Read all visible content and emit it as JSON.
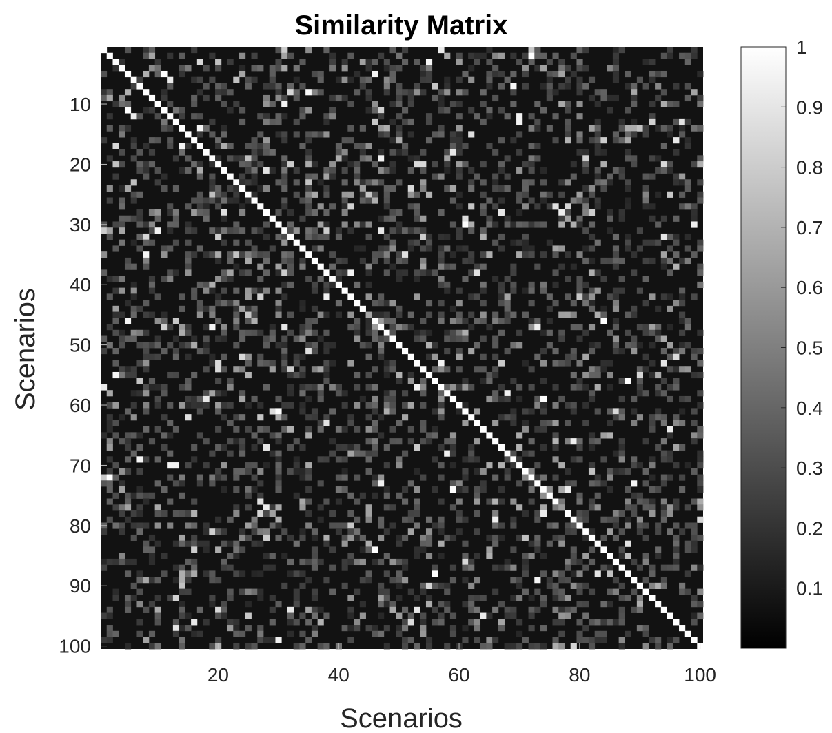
{
  "chart_data": {
    "type": "heatmap",
    "title": "Similarity Matrix",
    "xlabel": "Scenarios",
    "ylabel": "Scenarios",
    "rows": 100,
    "cols": 100,
    "xlim": [
      1,
      100
    ],
    "ylim": [
      1,
      100
    ],
    "y_reversed": true,
    "xticks": [
      20,
      40,
      60,
      80,
      100
    ],
    "yticks": [
      10,
      20,
      30,
      40,
      50,
      60,
      70,
      80,
      90,
      100
    ],
    "colormap": "gray",
    "colorbar": {
      "min": 0.0,
      "max": 1.0,
      "ticks": [
        0.1,
        0.2,
        0.3,
        0.4,
        0.5,
        0.6,
        0.7,
        0.8,
        0.9,
        1
      ],
      "tick_labels": [
        "0.1",
        "0.2",
        "0.3",
        "0.4",
        "0.5",
        "0.6",
        "0.7",
        "0.8",
        "0.9",
        "1"
      ]
    },
    "diagonal_value": 1.0,
    "background_value": 0.07,
    "notable_cells": [
      {
        "row": 45,
        "col": 45,
        "value": 0.65
      },
      {
        "row": 77,
        "col": 77,
        "value": 0.6
      },
      {
        "row": 20,
        "col": 54,
        "value": 0.85
      },
      {
        "row": 32,
        "col": 20,
        "value": 0.8
      },
      {
        "row": 32,
        "col": 54,
        "value": 0.8
      },
      {
        "row": 53,
        "col": 20,
        "value": 0.85
      },
      {
        "row": 53,
        "col": 94,
        "value": 0.85
      },
      {
        "row": 94,
        "col": 20,
        "value": 0.85
      },
      {
        "row": 94,
        "col": 32,
        "value": 0.9
      },
      {
        "row": 94,
        "col": 53,
        "value": 0.9
      },
      {
        "row": 12,
        "col": 70,
        "value": 0.95
      },
      {
        "row": 19,
        "col": 47,
        "value": 0.95
      },
      {
        "row": 47,
        "col": 19,
        "value": 0.95
      },
      {
        "row": 70,
        "col": 13,
        "value": 0.95
      },
      {
        "row": 31,
        "col": 47,
        "value": 0.9
      },
      {
        "row": 47,
        "col": 31,
        "value": 0.9
      },
      {
        "row": 56,
        "col": 88,
        "value": 1.0
      },
      {
        "row": 2,
        "col": 72,
        "value": 1.0
      },
      {
        "row": 5,
        "col": 11,
        "value": 1.0
      },
      {
        "row": 72,
        "col": 2,
        "value": 1.0
      },
      {
        "row": 76,
        "col": 66,
        "value": 0.7
      },
      {
        "row": 63,
        "col": 76,
        "value": 0.6
      },
      {
        "row": 25,
        "col": 55,
        "value": 0.7
      },
      {
        "row": 42,
        "col": 38,
        "value": 0.95
      },
      {
        "row": 38,
        "col": 42,
        "value": 0.95
      },
      {
        "row": 66,
        "col": 63,
        "value": 0.6
      }
    ]
  }
}
